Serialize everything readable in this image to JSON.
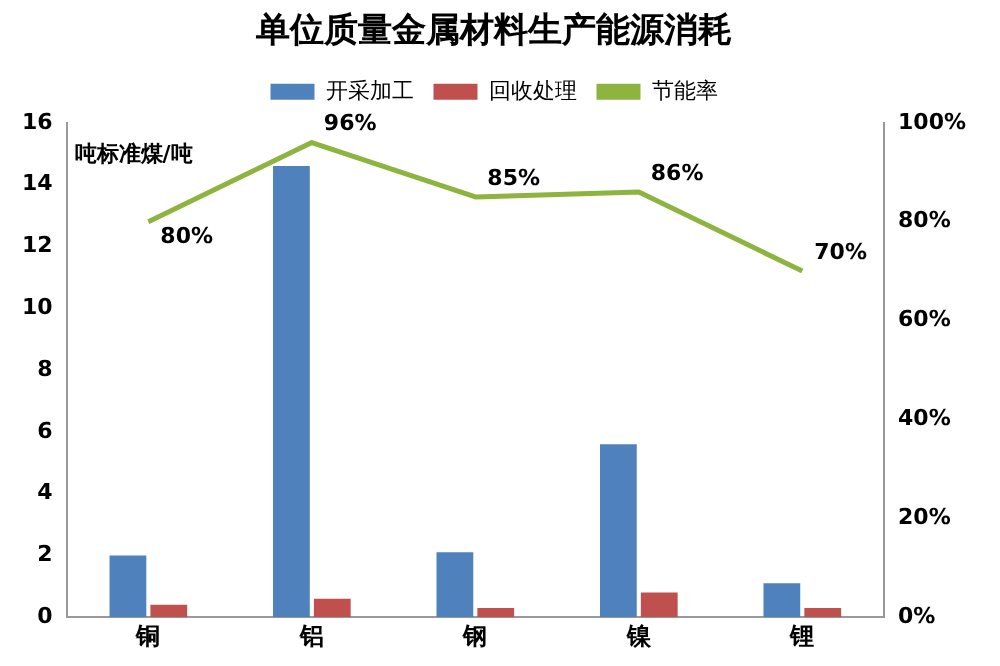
{
  "chart_data": {
    "type": "bar",
    "title": "单位质量金属材料生产能源消耗",
    "ylabel": "吨标准煤/吨",
    "categories": [
      "铜",
      "铝",
      "钢",
      "镍",
      "锂"
    ],
    "series": [
      {
        "name": "开采加工",
        "color": "#4f81bd",
        "values": [
          2.0,
          14.6,
          2.1,
          5.6,
          1.1
        ]
      },
      {
        "name": "回收处理",
        "color": "#c0504d",
        "values": [
          0.4,
          0.6,
          0.3,
          0.8,
          0.3
        ]
      },
      {
        "name": "节能率",
        "type": "line",
        "axis": "y2",
        "color": "#8db43e",
        "values": [
          80,
          96,
          85,
          86,
          70
        ],
        "value_labels": [
          "80%",
          "96%",
          "85%",
          "86%",
          "70%"
        ]
      }
    ],
    "ylim": [
      0,
      16
    ],
    "yticks": [
      0,
      2,
      4,
      6,
      8,
      10,
      12,
      14,
      16
    ],
    "y2lim": [
      0,
      100
    ],
    "y2ticks": [
      {
        "value": 0,
        "label": "0%"
      },
      {
        "value": 20,
        "label": "20%"
      },
      {
        "value": 40,
        "label": "40%"
      },
      {
        "value": 60,
        "label": "60%"
      },
      {
        "value": 80,
        "label": "80%"
      },
      {
        "value": 100,
        "label": "100%"
      }
    ],
    "grid": false,
    "legend": "top",
    "marker": "none",
    "line_style": "solid"
  }
}
